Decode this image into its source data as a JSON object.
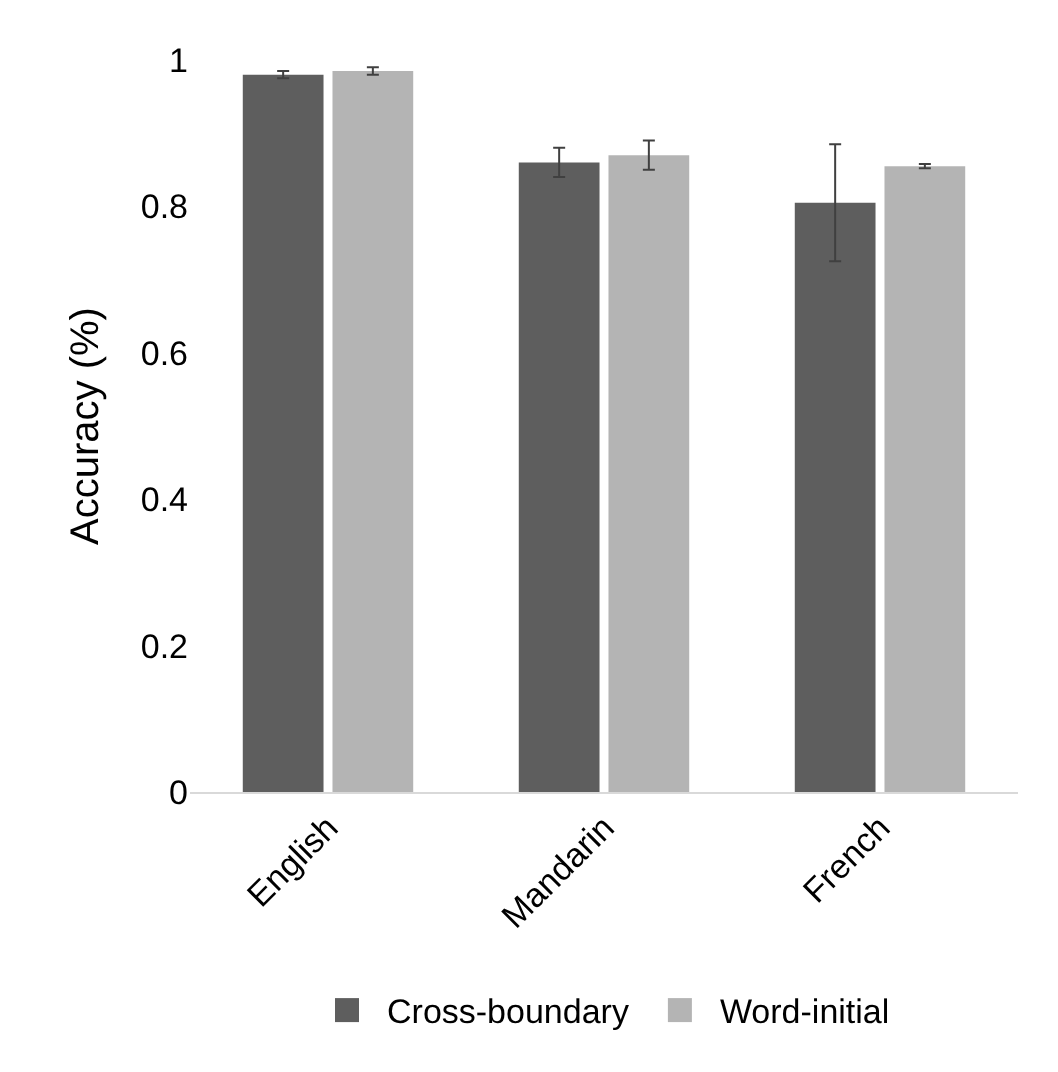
{
  "chart_data": {
    "type": "bar",
    "ylabel": "Accuracy (%)",
    "categories": [
      "English",
      "Mandarin",
      "French"
    ],
    "series": [
      {
        "name": "Cross-boundary",
        "color": "#5e5e5e",
        "values": [
          0.98,
          0.86,
          0.805
        ],
        "errors": [
          0.005,
          0.02,
          0.08
        ]
      },
      {
        "name": "Word-initial",
        "color": "#b4b4b4",
        "values": [
          0.985,
          0.87,
          0.855
        ],
        "errors": [
          0.005,
          0.02,
          0.003
        ]
      }
    ],
    "ylim": [
      0,
      1
    ],
    "yticks": [
      0,
      0.2,
      0.4,
      0.6,
      0.8,
      1
    ],
    "legend": "bottom"
  }
}
